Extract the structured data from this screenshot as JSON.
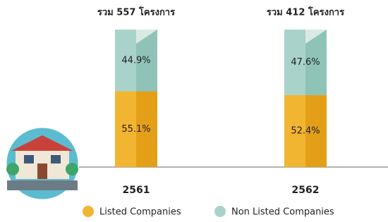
{
  "chart_data": {
    "type": "stacked_bar",
    "categories": [
      "2561",
      "2562"
    ],
    "total_labels": [
      "รวม 557 โครงการ",
      "รวม 412 โครงการ"
    ],
    "series": [
      {
        "name": "Listed Companies",
        "color": "#f2b531",
        "values": [
          55.1,
          52.4
        ],
        "value_labels": [
          "55.1%",
          "52.4%"
        ]
      },
      {
        "name": "Non Listed Companies",
        "color": "#a9d2ca",
        "values": [
          44.9,
          47.6
        ],
        "value_labels": [
          "44.9%",
          "47.6%"
        ]
      }
    ],
    "ylim": [
      0,
      100
    ],
    "legend": "bottom"
  }
}
